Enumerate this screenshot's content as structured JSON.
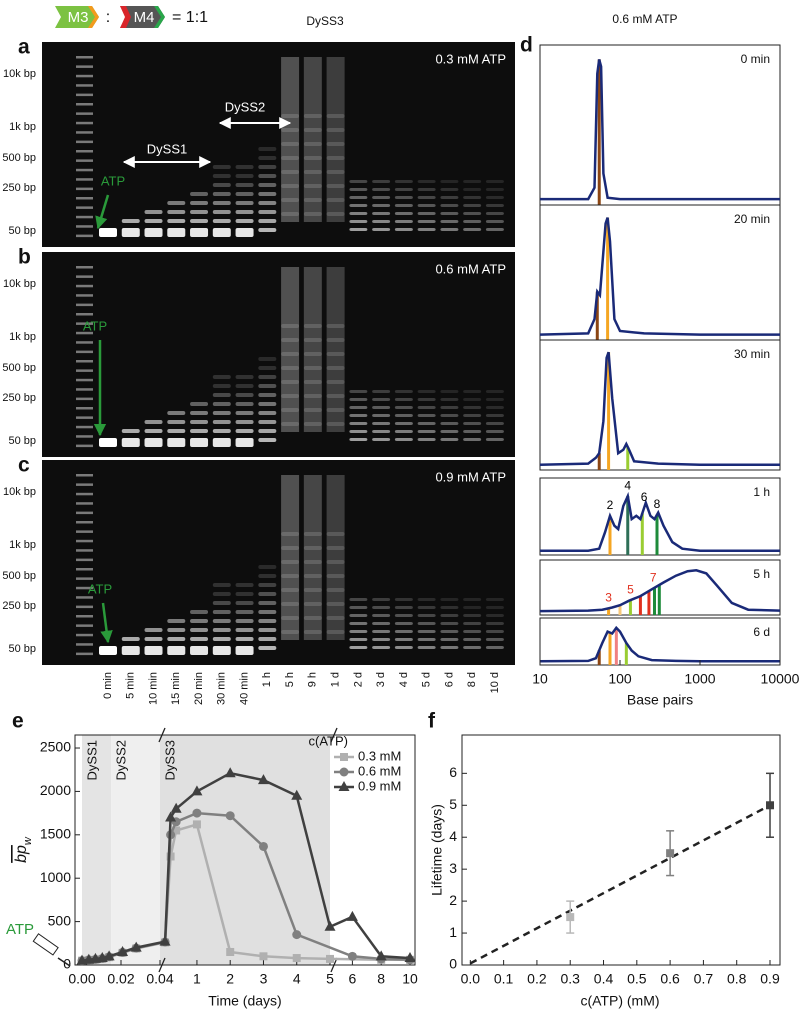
{
  "header": {
    "m3": "M3",
    "colon": ":",
    "m4": "M4",
    "ratio": "= 1:1"
  },
  "gels": {
    "lanes": [
      "0 min",
      "5 min",
      "10 min",
      "15 min",
      "20 min",
      "30 min",
      "40 min",
      "1 h",
      "5 h",
      "9 h",
      "1 d",
      "2 d",
      "3 d",
      "4 d",
      "5 d",
      "6 d",
      "8 d",
      "10 d"
    ],
    "panels": [
      {
        "letter": "a",
        "condition": "0.3 mM ATP",
        "size_labels": [
          "10k bp",
          "1k bp",
          "500 bp",
          "250 bp",
          "50 bp"
        ],
        "atp": "ATP"
      },
      {
        "letter": "b",
        "condition": "0.6 mM ATP",
        "size_labels": [
          "10k bp",
          "1k bp",
          "500 bp",
          "250 bp",
          "50 bp"
        ],
        "atp": "ATP"
      },
      {
        "letter": "c",
        "condition": "0.9 mM ATP",
        "size_labels": [
          "10k bp",
          "1k bp",
          "500 bp",
          "250 bp",
          "50 bp"
        ],
        "atp": "ATP"
      }
    ],
    "annotations": {
      "dyss1": "DySS1",
      "dyss2": "DySS2",
      "dyss3": "DySS3"
    }
  },
  "chart_data": [
    {
      "type": "line",
      "panel": "d",
      "title": "0.6 mM ATP",
      "x_label": "Base pairs",
      "x_log": true,
      "xlim": [
        10,
        10000
      ],
      "xticks": [
        10,
        100,
        1000,
        10000
      ],
      "ylim": [
        0,
        1.08
      ],
      "color": "#1a2a78",
      "series": [
        {
          "name": "0 min",
          "x": [
            10,
            40,
            48,
            52,
            55,
            58,
            62,
            70,
            100,
            1000,
            10000
          ],
          "values": [
            0.02,
            0.02,
            0.1,
            0.9,
            1,
            0.95,
            0.2,
            0.03,
            0.02,
            0.02,
            0.02
          ],
          "bars": [
            {
              "x": 55,
              "color": "#8b4513"
            }
          ],
          "peaks": []
        },
        {
          "name": "20 min",
          "x": [
            10,
            40,
            48,
            52,
            56,
            60,
            66,
            70,
            75,
            85,
            100,
            200,
            1000,
            10000
          ],
          "values": [
            0.02,
            0.03,
            0.15,
            0.38,
            0.35,
            0.6,
            0.95,
            1,
            0.8,
            0.15,
            0.05,
            0.03,
            0.02,
            0.02
          ],
          "bars": [
            {
              "x": 52,
              "color": "#8b4513"
            },
            {
              "x": 70,
              "color": "#f5a623"
            }
          ],
          "peaks": []
        },
        {
          "name": "30 min",
          "x": [
            10,
            40,
            50,
            55,
            62,
            68,
            72,
            80,
            95,
            110,
            120,
            130,
            150,
            300,
            1000,
            10000
          ],
          "values": [
            0.02,
            0.03,
            0.08,
            0.12,
            0.4,
            0.95,
            1,
            0.6,
            0.12,
            0.15,
            0.2,
            0.15,
            0.05,
            0.03,
            0.02,
            0.02
          ],
          "bars": [
            {
              "x": 55,
              "color": "#8b4513"
            },
            {
              "x": 72,
              "color": "#f5a623"
            },
            {
              "x": 125,
              "color": "#9acd32"
            }
          ],
          "peaks": []
        },
        {
          "name": "1 h",
          "x": [
            10,
            40,
            55,
            65,
            75,
            85,
            95,
            110,
            125,
            140,
            160,
            180,
            210,
            240,
            270,
            300,
            350,
            450,
            600,
            1000,
            10000
          ],
          "values": [
            0.02,
            0.02,
            0.05,
            0.3,
            0.55,
            0.4,
            0.35,
            0.7,
            0.85,
            0.5,
            0.55,
            0.5,
            0.75,
            0.55,
            0.5,
            0.6,
            0.4,
            0.15,
            0.05,
            0.02,
            0.02
          ],
          "bars": [
            {
              "x": 75,
              "color": "#f5a623"
            },
            {
              "x": 125,
              "color": "#2e6f57"
            },
            {
              "x": 190,
              "color": "#9acd32"
            },
            {
              "x": 290,
              "color": "#1e8b3a"
            }
          ],
          "peaks": [
            {
              "label": "2",
              "x": 75,
              "color": "#000000"
            },
            {
              "label": "4",
              "x": 125,
              "color": "#000000"
            },
            {
              "label": "6",
              "x": 200,
              "color": "#000000"
            },
            {
              "label": "8",
              "x": 290,
              "color": "#000000"
            }
          ]
        },
        {
          "name": "5 h",
          "x": [
            10,
            40,
            60,
            80,
            100,
            130,
            180,
            250,
            350,
            500,
            700,
            900,
            1200,
            1600,
            2500,
            4000,
            10000
          ],
          "values": [
            0.02,
            0.03,
            0.05,
            0.1,
            0.15,
            0.25,
            0.35,
            0.5,
            0.65,
            0.8,
            0.9,
            0.92,
            0.85,
            0.6,
            0.2,
            0.05,
            0.03
          ],
          "bars": [
            {
              "x": 72,
              "color": "#f5a623"
            },
            {
              "x": 100,
              "color": "#f7c87a"
            },
            {
              "x": 135,
              "color": "#9acd32"
            },
            {
              "x": 180,
              "color": "#e0301e"
            },
            {
              "x": 230,
              "color": "#e0301e"
            },
            {
              "x": 270,
              "color": "#1e8b3a"
            },
            {
              "x": 310,
              "color": "#1e8b3a"
            }
          ],
          "peaks": [
            {
              "label": "3",
              "x": 72,
              "color": "#e0301e"
            },
            {
              "label": "5",
              "x": 135,
              "color": "#e0301e"
            },
            {
              "label": "7",
              "x": 260,
              "color": "#e0301e"
            }
          ]
        },
        {
          "name": "6 d",
          "x": [
            10,
            40,
            50,
            60,
            70,
            80,
            90,
            100,
            120,
            140,
            170,
            250,
            500,
            1000,
            10000
          ],
          "values": [
            0.02,
            0.03,
            0.1,
            0.5,
            0.8,
            0.75,
            0.9,
            0.8,
            0.5,
            0.3,
            0.15,
            0.05,
            0.03,
            0.02,
            0.02
          ],
          "bars": [
            {
              "x": 55,
              "color": "#8b4513"
            },
            {
              "x": 75,
              "color": "#f5a623"
            },
            {
              "x": 90,
              "color": "#f08080"
            },
            {
              "x": 120,
              "color": "#9acd32"
            }
          ],
          "peaks": []
        }
      ]
    },
    {
      "type": "line",
      "panel": "e",
      "x_label": "Time (days)",
      "y_label": "bp",
      "y_label_sub": "w",
      "legend_title": "c(ATP)",
      "annotation": "ATP",
      "xlim": [
        0,
        10
      ],
      "x_breaks": [
        0.04,
        5
      ],
      "xticks": [
        {
          "value": 0,
          "label": "0.00"
        },
        {
          "value": 0.02,
          "label": "0.02"
        },
        {
          "value": 0.04,
          "label": "0.04"
        },
        1,
        2,
        3,
        4,
        5,
        6,
        8,
        10
      ],
      "ylim": [
        0,
        2650
      ],
      "yticks": [
        0,
        500,
        1000,
        1500,
        2000,
        2500
      ],
      "regions": [
        {
          "label": "DySS1",
          "x": [
            0,
            0.015
          ],
          "color": "#e4e4e4"
        },
        {
          "label": "DySS2",
          "x": [
            0.015,
            0.04
          ],
          "color": "#efefef"
        },
        {
          "label": "DySS3",
          "x": [
            0.04,
            5
          ],
          "color": "#e0e0e0"
        }
      ],
      "series": [
        {
          "name": "0.3 mM",
          "color": "#b0b0b0",
          "marker": "square",
          "x": [
            0,
            0.0035,
            0.0069,
            0.0104,
            0.0139,
            0.0208,
            0.0278,
            0.0417,
            0.208,
            0.375,
            1,
            2,
            3,
            4,
            5,
            8,
            10
          ],
          "values": [
            50,
            55,
            60,
            70,
            90,
            140,
            190,
            260,
            1250,
            1550,
            1620,
            150,
            100,
            80,
            70,
            60,
            60
          ]
        },
        {
          "name": "0.6 mM",
          "color": "#808080",
          "marker": "circle",
          "x": [
            0,
            0.0035,
            0.0069,
            0.0104,
            0.0139,
            0.0208,
            0.0278,
            0.0417,
            0.208,
            0.375,
            1,
            2,
            3,
            4,
            6,
            8,
            10
          ],
          "values": [
            50,
            60,
            65,
            75,
            95,
            145,
            195,
            265,
            1500,
            1650,
            1750,
            1720,
            1366,
            350,
            100,
            70,
            60
          ]
        },
        {
          "name": "0.9 mM",
          "color": "#404040",
          "marker": "triangle",
          "x": [
            0,
            0.0035,
            0.0069,
            0.0104,
            0.0139,
            0.0208,
            0.0278,
            0.0417,
            0.208,
            0.375,
            1,
            2,
            3,
            4,
            5,
            6,
            8,
            10
          ],
          "values": [
            50,
            60,
            70,
            80,
            100,
            150,
            200,
            270,
            1700,
            1800,
            2000,
            2210,
            2130,
            1950,
            440,
            555,
            100,
            80
          ]
        }
      ]
    },
    {
      "type": "scatter",
      "panel": "f",
      "x_label": "c(ATP) (mM)",
      "y_label": "Lifetime (days)",
      "xlim": [
        -0.025,
        0.93
      ],
      "xticks": [
        {
          "value": 0,
          "label": "0.0"
        },
        0.1,
        0.2,
        0.3,
        0.4,
        0.5,
        0.6,
        0.7,
        0.8,
        0.9
      ],
      "ylim": [
        0,
        7.2
      ],
      "yticks": [
        0,
        1,
        2,
        3,
        4,
        5,
        6
      ],
      "x": [
        0.3,
        0.6,
        0.9
      ],
      "values": [
        1.5,
        3.5,
        5
      ],
      "errors": [
        0.5,
        0.7,
        1
      ],
      "colors": [
        "#b8b8b8",
        "#808080",
        "#404040"
      ],
      "fit": {
        "x": [
          0,
          0.9
        ],
        "values": [
          0.05,
          5
        ],
        "color": "#222222"
      }
    }
  ]
}
